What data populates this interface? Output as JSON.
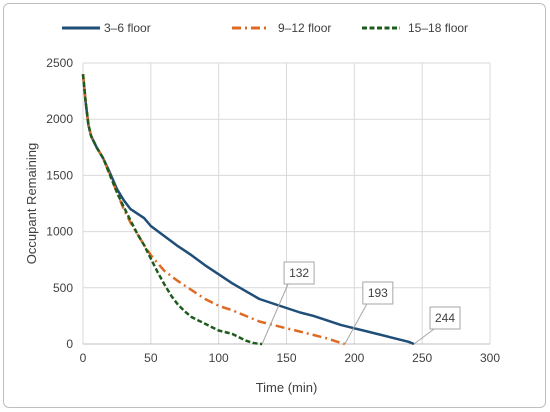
{
  "chart_data": {
    "type": "line",
    "title": "",
    "xlabel": "Time (min)",
    "ylabel": "Occupant Remaining",
    "xlim": [
      0,
      300
    ],
    "ylim": [
      0,
      2500
    ],
    "x_ticks": [
      0,
      50,
      100,
      150,
      200,
      250,
      300
    ],
    "y_ticks": [
      0,
      500,
      1000,
      1500,
      2000,
      2500
    ],
    "grid": "vertical-and-horizontal",
    "legend_position": "top",
    "series": [
      {
        "name": "3–6 floor",
        "color": "#1f4e79",
        "style": "solid",
        "x": [
          0,
          2,
          4,
          6,
          10,
          15,
          20,
          25,
          30,
          35,
          40,
          45,
          50,
          60,
          70,
          80,
          90,
          100,
          110,
          120,
          130,
          140,
          150,
          160,
          170,
          180,
          190,
          200,
          210,
          220,
          230,
          240,
          244
        ],
        "y": [
          2400,
          2150,
          1950,
          1850,
          1750,
          1650,
          1520,
          1380,
          1280,
          1200,
          1160,
          1120,
          1050,
          960,
          870,
          790,
          700,
          620,
          540,
          470,
          400,
          360,
          320,
          280,
          250,
          210,
          170,
          140,
          110,
          80,
          50,
          20,
          0
        ]
      },
      {
        "name": "9–12 floor",
        "color": "#e06a24",
        "style": "dash-dot",
        "x": [
          0,
          2,
          4,
          6,
          10,
          15,
          20,
          25,
          30,
          35,
          40,
          45,
          50,
          60,
          70,
          80,
          90,
          100,
          110,
          120,
          130,
          140,
          150,
          160,
          170,
          180,
          190,
          193
        ],
        "y": [
          2400,
          2150,
          1950,
          1850,
          1750,
          1650,
          1500,
          1350,
          1200,
          1080,
          980,
          880,
          790,
          650,
          560,
          480,
          400,
          340,
          300,
          250,
          200,
          170,
          140,
          110,
          80,
          50,
          10,
          0
        ]
      },
      {
        "name": "15–18 floor",
        "color": "#1e5c1e",
        "style": "dashed",
        "x": [
          0,
          2,
          4,
          6,
          10,
          15,
          20,
          25,
          30,
          35,
          40,
          45,
          50,
          55,
          60,
          65,
          70,
          75,
          80,
          90,
          100,
          110,
          115,
          120,
          125,
          130,
          132
        ],
        "y": [
          2400,
          2150,
          1950,
          1850,
          1750,
          1650,
          1500,
          1350,
          1220,
          1100,
          980,
          880,
          760,
          640,
          530,
          430,
          350,
          290,
          240,
          180,
          120,
          90,
          60,
          30,
          10,
          2,
          0
        ]
      }
    ],
    "annotations": [
      {
        "label": "132",
        "x": 132,
        "y": 0,
        "series": "15–18 floor"
      },
      {
        "label": "193",
        "x": 193,
        "y": 0,
        "series": "9–12 floor"
      },
      {
        "label": "244",
        "x": 244,
        "y": 0,
        "series": "3–6 floor"
      }
    ]
  }
}
